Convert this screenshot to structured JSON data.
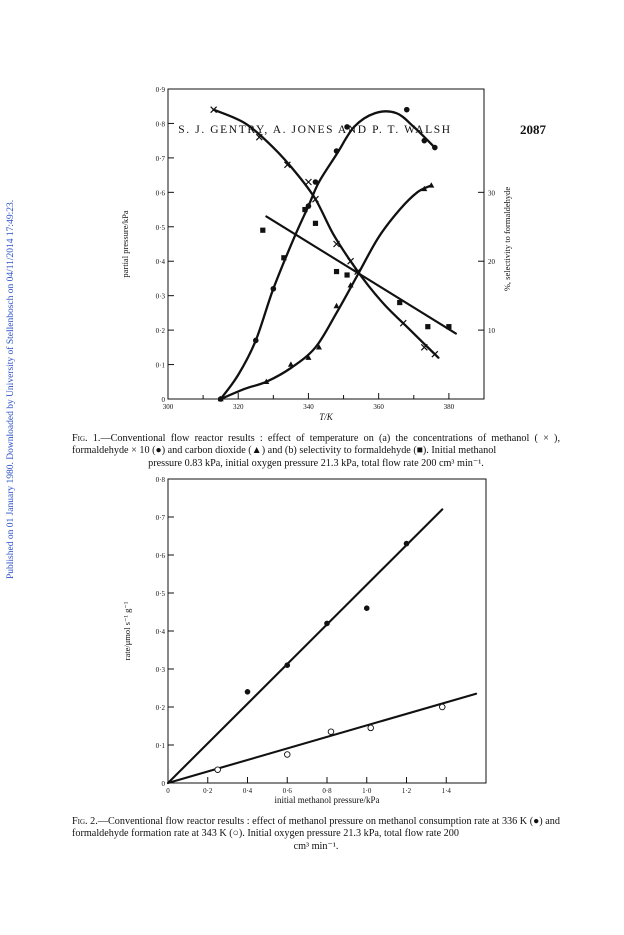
{
  "header": {
    "authors": "S. J. GENTRY, A. JONES AND P. T. WALSH",
    "page_number": "2087"
  },
  "side_note": "Published on 01 January 1980. Downloaded by University of Stellenbosch on 04/11/2014 17:49:23.",
  "figure1": {
    "caption_label": "Fig. 1.",
    "caption_text": "—Conventional flow reactor results : effect of temperature on (a) the concentrations of methanol ( × ), formaldehyde × 10 (●) and carbon dioxide (▲) and (b) selectivity to formaldehyde (■). Initial methanol",
    "caption_last": "pressure 0.83 kPa, initial oxygen pressure 21.3 kPa, total flow rate 200 cm³ min⁻¹.",
    "chart_data": {
      "type": "scatter",
      "xlabel": "T/K",
      "ylabel": "partial pressure/kPa",
      "y2label": "%, selectivity to formaldehyde",
      "xlim": [
        300,
        390
      ],
      "ylim": [
        0,
        0.9
      ],
      "y2lim": [
        0,
        45
      ],
      "x_ticks": [
        "300",
        "320",
        "340",
        "360",
        "380"
      ],
      "y_ticks": [
        "0",
        "0·1",
        "0·2",
        "0·3",
        "0·4",
        "0·5",
        "0·6",
        "0·7",
        "0·8",
        "0·9"
      ],
      "y2_ticks": [
        "10",
        "20",
        "30"
      ],
      "series": [
        {
          "marker": "cross",
          "points": [
            [
              313,
              0.84
            ],
            [
              326,
              0.76
            ],
            [
              334,
              0.68
            ],
            [
              340,
              0.63
            ],
            [
              342,
              0.58
            ],
            [
              348,
              0.45
            ],
            [
              352,
              0.4
            ],
            [
              354,
              0.37
            ],
            [
              367,
              0.22
            ],
            [
              373,
              0.15
            ],
            [
              376,
              0.13
            ]
          ],
          "curve": [
            [
              313,
              0.84
            ],
            [
              322,
              0.8
            ],
            [
              330,
              0.73
            ],
            [
              337,
              0.65
            ],
            [
              342,
              0.58
            ],
            [
              347,
              0.48
            ],
            [
              352,
              0.4
            ],
            [
              357,
              0.33
            ],
            [
              362,
              0.27
            ],
            [
              368,
              0.21
            ],
            [
              373,
              0.16
            ],
            [
              377,
              0.12
            ]
          ]
        },
        {
          "marker": "filled-circle",
          "points": [
            [
              315,
              0.0
            ],
            [
              325,
              0.17
            ],
            [
              330,
              0.32
            ],
            [
              340,
              0.56
            ],
            [
              342,
              0.63
            ],
            [
              348,
              0.72
            ],
            [
              351,
              0.79
            ],
            [
              368,
              0.84
            ],
            [
              373,
              0.75
            ],
            [
              376,
              0.73
            ]
          ],
          "curve": [
            [
              315,
              0.0
            ],
            [
              320,
              0.07
            ],
            [
              325,
              0.17
            ],
            [
              330,
              0.32
            ],
            [
              336,
              0.47
            ],
            [
              340,
              0.56
            ],
            [
              343,
              0.63
            ],
            [
              348,
              0.71
            ],
            [
              353,
              0.79
            ],
            [
              359,
              0.83
            ],
            [
              365,
              0.83
            ],
            [
              370,
              0.79
            ],
            [
              376,
              0.73
            ]
          ]
        },
        {
          "marker": "filled-triangle",
          "points": [
            [
              315,
              0.0
            ],
            [
              328,
              0.05
            ],
            [
              335,
              0.1
            ],
            [
              340,
              0.12
            ],
            [
              343,
              0.15
            ],
            [
              348,
              0.27
            ],
            [
              352,
              0.33
            ],
            [
              373,
              0.61
            ],
            [
              375,
              0.62
            ]
          ],
          "curve": [
            [
              315,
              0.0
            ],
            [
              322,
              0.03
            ],
            [
              328,
              0.05
            ],
            [
              335,
              0.09
            ],
            [
              342,
              0.15
            ],
            [
              348,
              0.25
            ],
            [
              354,
              0.36
            ],
            [
              360,
              0.47
            ],
            [
              366,
              0.55
            ],
            [
              371,
              0.6
            ],
            [
              375,
              0.62
            ]
          ]
        },
        {
          "marker": "filled-square",
          "axis": "right",
          "points": [
            [
              327,
              24.5
            ],
            [
              333,
              20.5
            ],
            [
              339,
              27.5
            ],
            [
              342,
              25.5
            ],
            [
              348,
              18.5
            ],
            [
              351,
              18.0
            ],
            [
              366,
              14.0
            ],
            [
              374,
              10.5
            ],
            [
              380,
              10.5
            ]
          ],
          "fit_line": [
            [
              328,
              26.5
            ],
            [
              382,
              9.5
            ]
          ]
        }
      ]
    }
  },
  "figure2": {
    "caption_label": "Fig. 2.",
    "caption_text": "—Conventional flow reactor results : effect of methanol pressure on methanol consumption rate at 336 K (●) and formaldehyde formation rate at 343 K (○). Initial oxygen pressure 21.3 kPa, total flow rate 200",
    "caption_last": "cm³ min⁻¹.",
    "chart_data": {
      "type": "scatter",
      "xlabel": "initial methanol pressure/kPa",
      "ylabel": "rate/μmol s⁻¹ g⁻¹",
      "xlim": [
        0,
        1.6
      ],
      "ylim": [
        0,
        0.8
      ],
      "x_ticks": [
        "0",
        "0·2",
        "0·4",
        "0·6",
        "0·8",
        "1·0",
        "1·2",
        "1·4"
      ],
      "y_ticks": [
        "0",
        "0·1",
        "0·2",
        "0·3",
        "0·4",
        "0·5",
        "0·6",
        "0·7",
        "0·8"
      ],
      "series": [
        {
          "marker": "filled-circle",
          "points": [
            [
              0.4,
              0.24
            ],
            [
              0.6,
              0.31
            ],
            [
              0.8,
              0.42
            ],
            [
              1.0,
              0.46
            ],
            [
              1.2,
              0.63
            ]
          ],
          "fit_line": [
            [
              0,
              0
            ],
            [
              1.38,
              0.72
            ]
          ]
        },
        {
          "marker": "open-circle",
          "points": [
            [
              0.25,
              0.035
            ],
            [
              0.6,
              0.075
            ],
            [
              0.82,
              0.135
            ],
            [
              1.02,
              0.145
            ],
            [
              1.38,
              0.2
            ]
          ],
          "fit_line": [
            [
              0,
              0
            ],
            [
              1.55,
              0.235
            ]
          ]
        }
      ]
    }
  }
}
